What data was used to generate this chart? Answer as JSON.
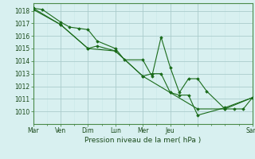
{
  "title": "",
  "xlabel": "Pression niveau de la mer( hPa )",
  "bg_color": "#d8f0f0",
  "grid_color_major": "#aacccc",
  "grid_color_minor": "#c8e8e8",
  "line_color": "#1a6b1a",
  "marker_color": "#1a6b1a",
  "ylim": [
    1009.0,
    1018.6
  ],
  "yticks": [
    1010,
    1011,
    1012,
    1013,
    1014,
    1015,
    1016,
    1017,
    1018
  ],
  "day_tick_positions": [
    0,
    12,
    24,
    36,
    48,
    60,
    72,
    96
  ],
  "day_tick_labels": [
    "Mar",
    "Ven",
    "Dim",
    "Lun",
    "Mer",
    "Jeu",
    "",
    "Sam"
  ],
  "series": [
    {
      "x": [
        0,
        4,
        12,
        16,
        20,
        24,
        28,
        36,
        40,
        48,
        52,
        56,
        60,
        64,
        68,
        72,
        76,
        84,
        88,
        92,
        96
      ],
      "y": [
        1018.2,
        1018.1,
        1017.1,
        1016.7,
        1016.6,
        1016.5,
        1015.6,
        1015.0,
        1014.1,
        1014.1,
        1012.8,
        1015.9,
        1013.5,
        1011.5,
        1012.6,
        1012.6,
        1011.6,
        1010.2,
        1010.2,
        1010.2,
        1011.1
      ]
    },
    {
      "x": [
        0,
        12,
        24,
        28,
        36,
        48,
        52,
        56,
        60,
        64,
        68,
        72,
        84,
        96
      ],
      "y": [
        1018.1,
        1016.9,
        1015.0,
        1015.2,
        1014.8,
        1012.8,
        1013.0,
        1013.0,
        1011.5,
        1011.3,
        1011.3,
        1009.7,
        1010.3,
        1011.1
      ]
    },
    {
      "x": [
        0,
        12,
        24,
        36,
        48,
        60,
        72,
        84,
        96
      ],
      "y": [
        1018.2,
        1016.9,
        1015.0,
        1014.8,
        1012.8,
        1011.5,
        1010.2,
        1010.2,
        1011.1
      ]
    }
  ],
  "xmax": 96
}
